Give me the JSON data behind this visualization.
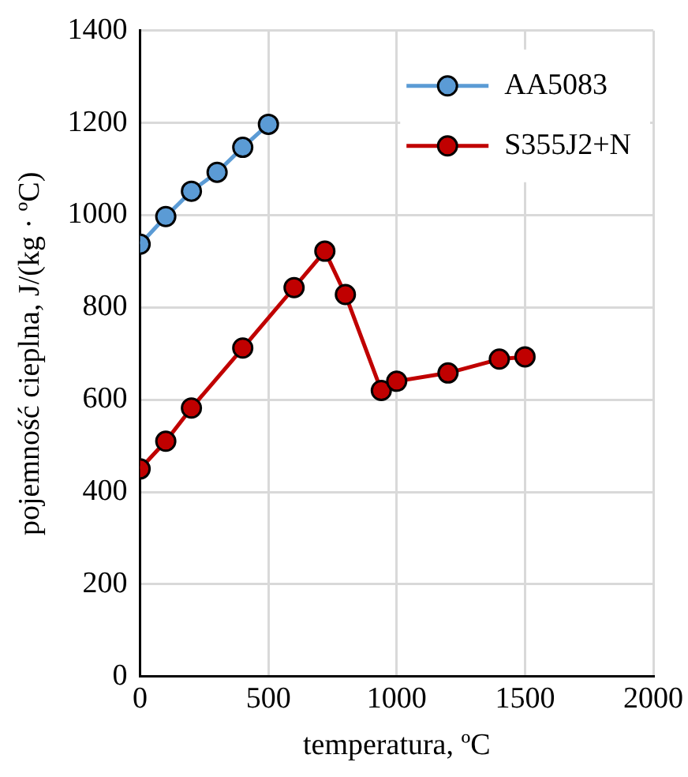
{
  "chart_data": {
    "type": "line",
    "xlabel": "temperatura, ºC",
    "ylabel": "pojemność cieplna, J/(kg · ºC)",
    "xlim": [
      0,
      2000
    ],
    "xticks": [
      0,
      500,
      1000,
      1500,
      2000
    ],
    "ylim": [
      0,
      1400
    ],
    "yticks": [
      0,
      200,
      400,
      600,
      800,
      1000,
      1200,
      1400
    ],
    "grid": true,
    "legend": "top right",
    "marker": "circle",
    "series": [
      {
        "name": "AA5083",
        "color": "#5b9bd5",
        "x": [
          0,
          100,
          200,
          300,
          400,
          500
        ],
        "values": [
          937,
          997,
          1052,
          1093,
          1147,
          1197
        ]
      },
      {
        "name": "S355J2+N",
        "color": "#c00000",
        "x": [
          0,
          100,
          200,
          400,
          600,
          720,
          800,
          940,
          1000,
          1200,
          1400,
          1500
        ],
        "values": [
          450,
          510,
          582,
          712,
          843,
          922,
          828,
          620,
          640,
          658,
          688,
          693
        ]
      }
    ]
  }
}
